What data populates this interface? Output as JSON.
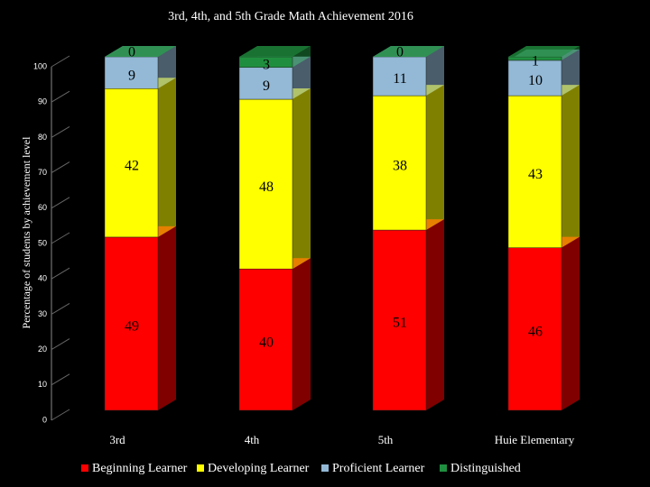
{
  "chart_data": {
    "type": "bar3d_stacked",
    "title": "3rd, 4th, and 5th Grade Math Achievement 2016",
    "y_label": "Percentage of students by achievement level",
    "categories": [
      "3rd",
      "4th",
      "5th",
      "Huie Elementary"
    ],
    "series": [
      {
        "name": "Beginning Learner",
        "color": "#ff0000",
        "values": [
          49,
          40,
          51,
          46
        ]
      },
      {
        "name": "Developing Learner",
        "color": "#ffff00",
        "values": [
          42,
          48,
          38,
          43
        ]
      },
      {
        "name": "Proficient Learner",
        "color": "#93b9d6",
        "values": [
          9,
          9,
          11,
          10
        ]
      },
      {
        "name": "Distinguished",
        "color": "#1f8f3f",
        "values": [
          0,
          3,
          0,
          1
        ]
      }
    ],
    "ylim": [
      0,
      100
    ],
    "yticks": [
      0,
      10,
      20,
      30,
      40,
      50,
      60,
      70,
      80,
      90,
      100
    ]
  }
}
